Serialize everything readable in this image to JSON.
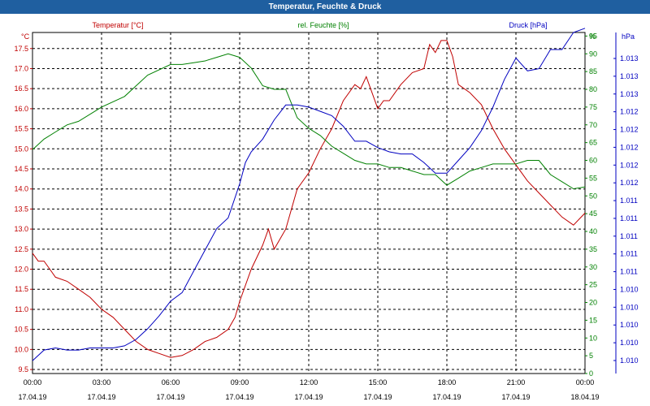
{
  "window": {
    "title": "Temperatur, Feuchte & Druck"
  },
  "colors": {
    "temperature": "#c00000",
    "humidity": "#008000",
    "pressure": "#0000c0",
    "titlebar": "#1f5fa0",
    "grid": "#000000"
  },
  "chart_data": {
    "type": "line",
    "title": "Temperatur, Feuchte & Druck",
    "grid": true,
    "x_ticks": [
      {
        "time": "00:00",
        "date": "17.04.19"
      },
      {
        "time": "03:00",
        "date": "17.04.19"
      },
      {
        "time": "06:00",
        "date": "17.04.19"
      },
      {
        "time": "09:00",
        "date": "17.04.19"
      },
      {
        "time": "12:00",
        "date": "17.04.19"
      },
      {
        "time": "15:00",
        "date": "17.04.19"
      },
      {
        "time": "18:00",
        "date": "17.04.19"
      },
      {
        "time": "21:00",
        "date": "17.04.19"
      },
      {
        "time": "00:00",
        "date": "18.04.19"
      }
    ],
    "axes": {
      "temperature": {
        "label": "Temperatur [°C]",
        "unit": "°C",
        "range": [
          9.4,
          17.9
        ],
        "ticks": [
          "9.5",
          "10.0",
          "10.5",
          "11.0",
          "11.5",
          "12.0",
          "12.5",
          "13.0",
          "13.5",
          "14.0",
          "14.5",
          "15.0",
          "15.5",
          "16.0",
          "16.5",
          "17.0",
          "17.5"
        ]
      },
      "humidity": {
        "label": "rel. Feuchte [%]",
        "unit": "%",
        "range": [
          0,
          96
        ],
        "ticks": [
          "0",
          "5",
          "10",
          "15",
          "20",
          "25",
          "30",
          "35",
          "40",
          "45",
          "50",
          "55",
          "60",
          "65",
          "70",
          "75",
          "80",
          "85",
          "90",
          "95"
        ]
      },
      "pressure": {
        "label": "Druck [hPa]",
        "unit": "hPa",
        "range": [
          0,
          16
        ],
        "ticks": [
          "1.010",
          "1.010",
          "1.010",
          "1.010",
          "1.010",
          "1.011",
          "1.011",
          "1.011",
          "1.011",
          "1.011",
          "1.012",
          "1.012",
          "1.012",
          "1.012",
          "1.012",
          "1.013",
          "1.013",
          "1.013"
        ]
      }
    },
    "series": [
      {
        "name": "Temperatur [°C]",
        "axis": "temperature",
        "x": [
          0,
          0.25,
          0.5,
          0.75,
          1,
          1.5,
          2,
          2.5,
          3,
          3.5,
          4,
          4.5,
          5,
          5.5,
          6,
          6.5,
          7,
          7.5,
          8,
          8.5,
          8.8,
          9,
          9.5,
          10,
          10.25,
          10.5,
          11,
          11.5,
          12,
          12.5,
          13,
          13.5,
          14,
          14.25,
          14.5,
          15,
          15.25,
          15.5,
          16,
          16.5,
          17,
          17.25,
          17.5,
          17.75,
          18,
          18.25,
          18.5,
          19,
          19.5,
          20,
          20.5,
          21,
          21.5,
          22,
          22.5,
          23,
          23.5,
          24
        ],
        "y": [
          12.4,
          12.2,
          12.2,
          12.0,
          11.8,
          11.7,
          11.5,
          11.3,
          11.0,
          10.8,
          10.5,
          10.2,
          10.0,
          9.9,
          9.8,
          9.85,
          10.0,
          10.2,
          10.3,
          10.5,
          10.8,
          11.2,
          12.0,
          12.6,
          13.0,
          12.5,
          13.0,
          14.0,
          14.4,
          15.0,
          15.5,
          16.2,
          16.6,
          16.5,
          16.8,
          16.0,
          16.2,
          16.2,
          16.6,
          16.9,
          17.0,
          17.6,
          17.4,
          17.7,
          17.7,
          17.3,
          16.6,
          16.4,
          16.1,
          15.5,
          15.0,
          14.6,
          14.2,
          13.9,
          13.6,
          13.3,
          13.1,
          13.4
        ]
      },
      {
        "name": "rel. Feuchte [%]",
        "axis": "humidity",
        "x": [
          0,
          0.5,
          1,
          1.5,
          2,
          3,
          4,
          5,
          6,
          6.5,
          7,
          7.5,
          8,
          8.5,
          9,
          9.5,
          10,
          10.5,
          11,
          11.5,
          12,
          12.5,
          13,
          13.5,
          14,
          14.5,
          15,
          15.5,
          16,
          16.5,
          17,
          17.5,
          18,
          18.5,
          19,
          19.5,
          20,
          20.5,
          21,
          21.5,
          22,
          22.5,
          23,
          23.5,
          24
        ],
        "y": [
          63,
          66,
          68,
          70,
          71,
          75,
          78,
          84,
          87,
          87,
          87.5,
          88,
          89,
          90,
          89,
          86,
          81,
          80,
          80,
          72,
          69,
          67,
          64,
          62,
          60,
          59,
          59,
          58,
          58,
          57,
          56,
          56,
          53,
          55,
          57,
          58,
          59,
          59,
          59,
          60,
          60,
          56,
          54,
          52,
          52.5
        ]
      },
      {
        "name": "Druck [hPa]",
        "axis": "pressure",
        "x": [
          0,
          0.5,
          1,
          1.5,
          2,
          2.5,
          3,
          3.5,
          4,
          4.5,
          5,
          5.5,
          6,
          6.5,
          7,
          7.5,
          8,
          8.5,
          9,
          9.25,
          9.5,
          10,
          10.5,
          11,
          11.5,
          12,
          12.5,
          13,
          13.5,
          14,
          14.5,
          15,
          15.5,
          16,
          16.5,
          17,
          17.5,
          18,
          18.5,
          19,
          19.5,
          20,
          20.5,
          21,
          21.5,
          22,
          22.5,
          23,
          23.5,
          24
        ],
        "y": [
          0.6,
          1.1,
          1.2,
          1.1,
          1.1,
          1.2,
          1.2,
          1.2,
          1.3,
          1.6,
          2.1,
          2.7,
          3.4,
          3.8,
          4.8,
          5.8,
          6.8,
          7.3,
          8.9,
          9.9,
          10.4,
          11.0,
          11.9,
          12.6,
          12.6,
          12.5,
          12.3,
          12.1,
          11.6,
          10.9,
          10.9,
          10.6,
          10.4,
          10.3,
          10.3,
          9.9,
          9.4,
          9.4,
          10.0,
          10.6,
          11.4,
          12.5,
          13.8,
          14.8,
          14.2,
          14.3,
          15.2,
          15.2,
          16.0,
          16.2
        ]
      }
    ]
  }
}
